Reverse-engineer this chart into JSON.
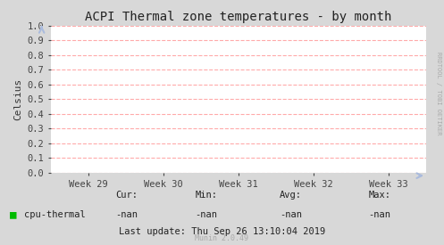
{
  "title": "ACPI Thermal zone temperatures - by month",
  "ylabel": "Celsius",
  "ylim": [
    0.0,
    1.0
  ],
  "yticks": [
    0.0,
    0.1,
    0.2,
    0.3,
    0.4,
    0.5,
    0.6,
    0.7,
    0.8,
    0.9,
    1.0
  ],
  "xtick_labels": [
    "Week 29",
    "Week 30",
    "Week 31",
    "Week 32",
    "Week 33"
  ],
  "xtick_positions": [
    0.1,
    0.3,
    0.5,
    0.7,
    0.9
  ],
  "background_color": "#d8d8d8",
  "plot_bg_color": "#ffffff",
  "grid_color": "#ffaaaa",
  "title_fontsize": 10,
  "axis_label_fontsize": 8,
  "tick_fontsize": 7.5,
  "legend_label": "cpu-thermal",
  "legend_color": "#00bb00",
  "cur_label": "Cur:",
  "min_label": "Min:",
  "avg_label": "Avg:",
  "max_label": "Max:",
  "cur_val": "-nan",
  "min_val": "-nan",
  "avg_val": "-nan",
  "max_val": "-nan",
  "last_update": "Last update: Thu Sep 26 13:10:04 2019",
  "munin_label": "Munin 2.0.49",
  "right_label": "RRDTOOL / TOBI OETIKER",
  "arrow_color": "#aabbdd"
}
